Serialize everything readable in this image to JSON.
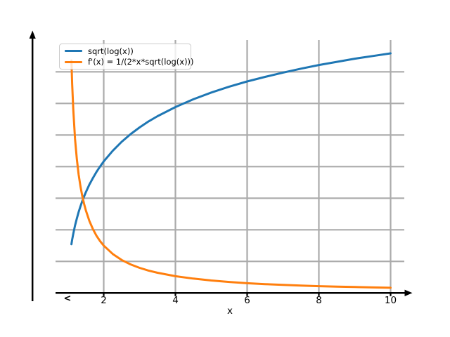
{
  "figure": {
    "xlabel": "x",
    "x_axis_left_marker": "<",
    "x_tick_labels": [
      "2",
      "4",
      "6",
      "8",
      "10"
    ]
  },
  "legend": {
    "position": "upper left",
    "entries": [
      {
        "label": "sqrt(log(x))",
        "color": "#1f77b4"
      },
      {
        "label": "f'(x) = 1/(2*x*sqrt(log(x)))",
        "color": "#ff7f0e"
      }
    ]
  },
  "colors": {
    "background": "#ffffff",
    "grid": "#ababab",
    "axis": "#000000",
    "series_blue": "#1f77b4",
    "series_orange": "#ff7f0e",
    "legend_border": "#cccccc"
  },
  "chart_data": {
    "type": "line",
    "title": "",
    "xlabel": "x",
    "ylabel": "",
    "xlim": [
      0.66,
      10.6
    ],
    "ylim": [
      0,
      1.6
    ],
    "xticks": [
      2,
      4,
      6,
      8,
      10
    ],
    "grid": true,
    "grid_y_values": [
      0.2,
      0.4,
      0.6,
      0.8,
      1.0,
      1.2,
      1.4
    ],
    "legend_position": "upper left",
    "series": [
      {
        "name": "sqrt(log(x))",
        "color": "#1f77b4",
        "x": [
          1.1,
          1.12,
          1.15,
          1.2,
          1.25,
          1.3,
          1.35,
          1.4,
          1.45,
          1.5,
          1.6,
          1.7,
          1.8,
          1.9,
          2,
          2.25,
          2.5,
          2.75,
          3,
          3.25,
          3.5,
          4,
          4.5,
          5,
          5.5,
          6,
          6.5,
          7,
          7.5,
          8,
          8.5,
          9,
          9.5,
          10
        ],
        "y": [
          0.309,
          0.337,
          0.374,
          0.427,
          0.472,
          0.512,
          0.548,
          0.58,
          0.61,
          0.637,
          0.686,
          0.728,
          0.767,
          0.801,
          0.833,
          0.9,
          0.957,
          1.006,
          1.048,
          1.086,
          1.119,
          1.177,
          1.226,
          1.269,
          1.306,
          1.339,
          1.368,
          1.395,
          1.42,
          1.443,
          1.463,
          1.483,
          1.5,
          1.517
        ]
      },
      {
        "name": "f'(x) = 1/(2*x*sqrt(log(x)))",
        "color": "#ff7f0e",
        "x": [
          1.1,
          1.12,
          1.15,
          1.2,
          1.25,
          1.3,
          1.35,
          1.4,
          1.45,
          1.5,
          1.6,
          1.7,
          1.8,
          1.9,
          2,
          2.25,
          2.5,
          2.75,
          3,
          3.25,
          3.5,
          4,
          4.5,
          5,
          5.5,
          6,
          6.5,
          7,
          7.5,
          8,
          8.5,
          9,
          9.5,
          10
        ],
        "y": [
          1.472,
          1.326,
          1.163,
          0.976,
          0.847,
          0.751,
          0.676,
          0.616,
          0.566,
          0.524,
          0.456,
          0.404,
          0.362,
          0.328,
          0.3,
          0.247,
          0.209,
          0.181,
          0.159,
          0.142,
          0.128,
          0.106,
          0.091,
          0.079,
          0.07,
          0.062,
          0.056,
          0.051,
          0.047,
          0.043,
          0.04,
          0.038,
          0.035,
          0.033
        ]
      }
    ]
  }
}
